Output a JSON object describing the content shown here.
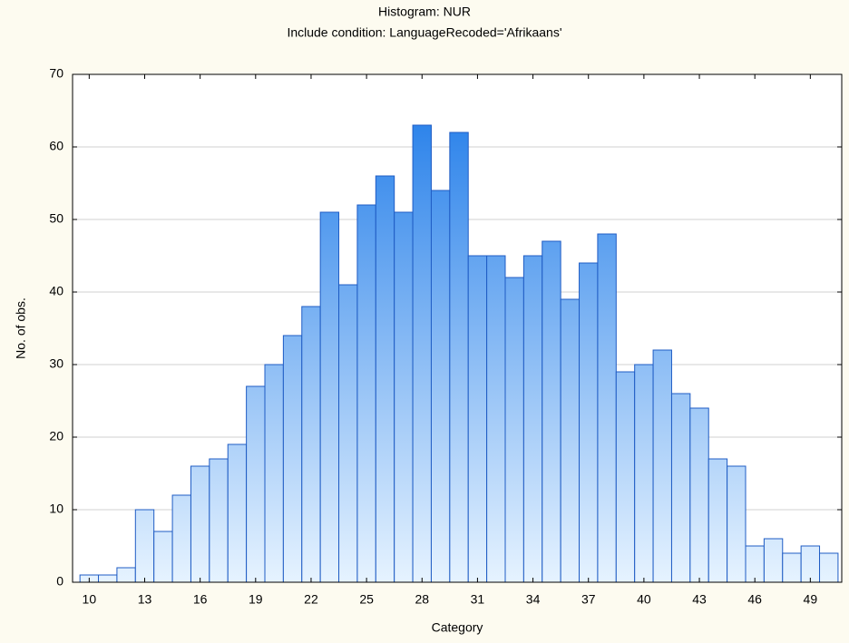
{
  "chart_data": {
    "type": "histogram",
    "title": "Histogram: NUR",
    "subtitle": "Include condition: LanguageRecoded='Afrikaans'",
    "x_label": "Category",
    "y_label": "No. of obs.",
    "bins": [
      9.5,
      10.5,
      11.5,
      12.5,
      13.5,
      14.5,
      15.5,
      16.5,
      17.5,
      18.5,
      19.5,
      20.5,
      21.5,
      22.5,
      23.5,
      24.5,
      25.5,
      26.5,
      27.5,
      28.5,
      29.5,
      30.5,
      31.5,
      32.5,
      33.5,
      34.5,
      35.5,
      36.5,
      37.5,
      38.5,
      39.5,
      40.5,
      41.5,
      42.5,
      43.5,
      44.5,
      45.5,
      46.5,
      47.5,
      48.5,
      49.5,
      50.5
    ],
    "values": [
      1,
      1,
      2,
      10,
      7,
      12,
      16,
      17,
      19,
      27,
      30,
      34,
      38,
      51,
      41,
      52,
      56,
      51,
      63,
      54,
      62,
      45,
      45,
      42,
      45,
      47,
      39,
      44,
      48,
      29,
      30,
      32,
      26,
      24,
      17,
      16,
      5,
      6,
      4,
      5,
      4
    ],
    "xlim": [
      9.1,
      50.7
    ],
    "xticks": [
      10,
      13,
      16,
      19,
      22,
      25,
      28,
      31,
      34,
      37,
      40,
      43,
      46,
      49
    ],
    "ylim": [
      0,
      70
    ],
    "yticks": [
      0,
      10,
      20,
      30,
      40,
      50,
      60,
      70
    ],
    "grid": true,
    "color": "#1a78e8",
    "color_light": "#e6f3ff",
    "edge_color": "#1f5cc4"
  }
}
